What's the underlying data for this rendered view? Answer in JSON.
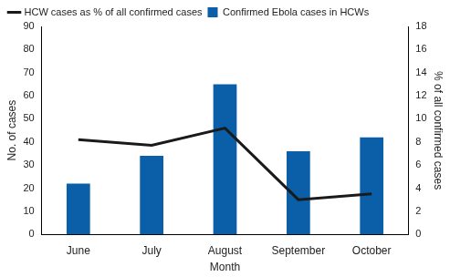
{
  "chart_data": {
    "type": "bar",
    "categories": [
      "June",
      "July",
      "August",
      "September",
      "October"
    ],
    "x_label": "Month",
    "y_label": "No. of cases",
    "y2_label": "% of all confirmed cases",
    "series": [
      {
        "name": "Confirmed Ebola cases in HCWs",
        "type": "bar",
        "color": "#0b5fa8",
        "values": [
          22,
          34,
          65,
          36,
          42
        ]
      },
      {
        "name": "HCW cases as % of all confirmed cases",
        "type": "line",
        "color": "#1a1a1a",
        "axis": "y2",
        "values": [
          8.2,
          7.7,
          9.2,
          3.0,
          3.5
        ]
      }
    ],
    "ylim": [
      0,
      90
    ],
    "yticks": [
      0,
      10,
      20,
      30,
      40,
      50,
      60,
      70,
      80,
      90
    ],
    "y2lim": [
      0,
      18
    ],
    "y2ticks": [
      0,
      2,
      4,
      6,
      8,
      10,
      12,
      14,
      16,
      18
    ],
    "grid": false,
    "legend": "upper left"
  }
}
